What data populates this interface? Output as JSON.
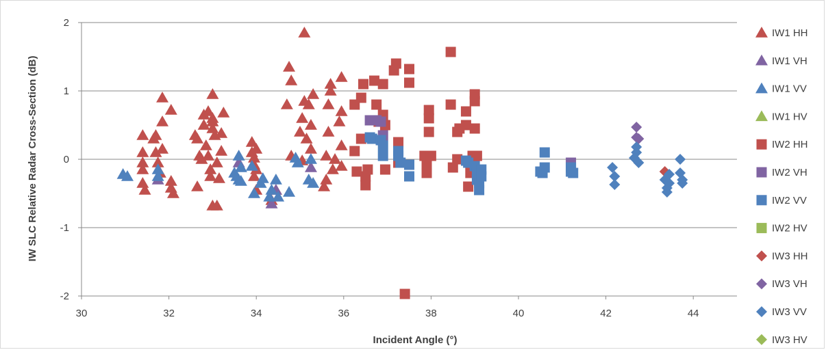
{
  "chart_data": {
    "type": "scatter",
    "title": "",
    "xlabel": "Incident Angle (°)",
    "ylabel": "IW SLC Relative Radar Cross-Section (dB)",
    "xlim": [
      30,
      45
    ],
    "ylim": [
      -2,
      2
    ],
    "xticks": [
      30,
      32,
      34,
      36,
      38,
      40,
      42,
      44
    ],
    "yticks": [
      -2,
      -1,
      0,
      1,
      2
    ],
    "grid": true,
    "legend_position": "right",
    "series": [
      {
        "name": "IW1 HH",
        "marker": "triangle",
        "color": "#c0504d",
        "points": [
          [
            31.4,
            0.35
          ],
          [
            31.4,
            0.1
          ],
          [
            31.4,
            -0.05
          ],
          [
            31.4,
            -0.15
          ],
          [
            31.4,
            -0.35
          ],
          [
            31.45,
            -0.45
          ],
          [
            31.65,
            0.3
          ],
          [
            31.7,
            0.35
          ],
          [
            31.7,
            0.1
          ],
          [
            31.75,
            -0.05
          ],
          [
            31.8,
            -0.2
          ],
          [
            31.85,
            0.15
          ],
          [
            31.85,
            0.55
          ],
          [
            31.85,
            0.9
          ],
          [
            32.05,
            0.72
          ],
          [
            32.05,
            -0.32
          ],
          [
            32.05,
            -0.42
          ],
          [
            32.1,
            -0.5
          ],
          [
            32.6,
            0.35
          ],
          [
            32.65,
            0.3
          ],
          [
            32.65,
            -0.4
          ],
          [
            32.7,
            0.05
          ],
          [
            32.75,
            0.0
          ],
          [
            32.8,
            0.5
          ],
          [
            32.8,
            0.65
          ],
          [
            32.85,
            0.2
          ],
          [
            32.9,
            0.05
          ],
          [
            32.9,
            0.7
          ],
          [
            32.95,
            -0.15
          ],
          [
            32.95,
            -0.25
          ],
          [
            33.0,
            0.45
          ],
          [
            33.0,
            0.55
          ],
          [
            33.0,
            0.6
          ],
          [
            33.0,
            0.95
          ],
          [
            33.05,
            0.35
          ],
          [
            33.0,
            -0.68
          ],
          [
            33.1,
            -0.68
          ],
          [
            33.1,
            -0.05
          ],
          [
            33.15,
            -0.28
          ],
          [
            33.2,
            0.12
          ],
          [
            33.2,
            0.38
          ],
          [
            33.25,
            0.68
          ],
          [
            33.9,
            0.25
          ],
          [
            33.9,
            0.1
          ],
          [
            33.95,
            0.02
          ],
          [
            33.95,
            -0.08
          ],
          [
            34.0,
            0.15
          ],
          [
            34.0,
            -0.15
          ],
          [
            33.95,
            -0.25
          ],
          [
            34.0,
            -0.45
          ],
          [
            34.35,
            -0.6
          ],
          [
            34.45,
            -0.45
          ],
          [
            34.7,
            0.8
          ],
          [
            34.75,
            1.35
          ],
          [
            34.8,
            1.15
          ],
          [
            34.8,
            0.05
          ],
          [
            35.0,
            0.4
          ],
          [
            35.05,
            0.6
          ],
          [
            35.05,
            -0.02
          ],
          [
            35.1,
            0.85
          ],
          [
            35.1,
            1.85
          ],
          [
            35.15,
            0.3
          ],
          [
            35.2,
            0.8
          ],
          [
            35.25,
            0.15
          ],
          [
            35.25,
            0.5
          ],
          [
            35.3,
            0.95
          ],
          [
            35.55,
            -0.4
          ],
          [
            35.6,
            0.05
          ],
          [
            35.6,
            -0.3
          ],
          [
            35.65,
            0.8
          ],
          [
            35.65,
            0.4
          ],
          [
            35.7,
            1.0
          ],
          [
            35.7,
            1.1
          ],
          [
            35.75,
            -0.15
          ],
          [
            35.8,
            0.0
          ],
          [
            35.9,
            0.55
          ],
          [
            35.95,
            0.7
          ],
          [
            35.95,
            1.2
          ],
          [
            35.95,
            0.2
          ],
          [
            35.95,
            -0.1
          ]
        ]
      },
      {
        "name": "IW1 VH",
        "marker": "triangle",
        "color": "#8064a2",
        "points": [
          [
            31.75,
            -0.3
          ],
          [
            33.6,
            -0.05
          ],
          [
            34.35,
            -0.65
          ],
          [
            34.45,
            -0.45
          ],
          [
            35.25,
            -0.12
          ]
        ]
      },
      {
        "name": "IW1 VV",
        "marker": "triangle",
        "color": "#4f81bd",
        "points": [
          [
            30.95,
            -0.22
          ],
          [
            31.05,
            -0.25
          ],
          [
            31.75,
            -0.15
          ],
          [
            31.75,
            -0.25
          ],
          [
            33.5,
            -0.2
          ],
          [
            33.55,
            -0.25
          ],
          [
            33.6,
            -0.3
          ],
          [
            33.6,
            0.05
          ],
          [
            33.65,
            -0.12
          ],
          [
            33.65,
            -0.32
          ],
          [
            33.9,
            -0.1
          ],
          [
            33.95,
            -0.5
          ],
          [
            34.1,
            -0.35
          ],
          [
            34.15,
            -0.28
          ],
          [
            34.3,
            -0.55
          ],
          [
            34.35,
            -0.45
          ],
          [
            34.45,
            -0.3
          ],
          [
            34.5,
            -0.55
          ],
          [
            34.75,
            -0.48
          ],
          [
            34.9,
            0.02
          ],
          [
            34.95,
            -0.05
          ],
          [
            35.2,
            -0.3
          ],
          [
            35.25,
            0.0
          ],
          [
            35.3,
            -0.35
          ]
        ]
      },
      {
        "name": "IW1 HV",
        "marker": "triangle",
        "color": "#9bbb59",
        "points": []
      },
      {
        "name": "IW2 HH",
        "marker": "square",
        "color": "#c0504d",
        "points": [
          [
            36.25,
            0.8
          ],
          [
            36.25,
            0.12
          ],
          [
            36.3,
            -0.18
          ],
          [
            36.4,
            0.9
          ],
          [
            36.4,
            0.3
          ],
          [
            36.45,
            1.1
          ],
          [
            36.5,
            -0.25
          ],
          [
            36.5,
            -0.38
          ],
          [
            36.55,
            -0.15
          ],
          [
            36.7,
            1.15
          ],
          [
            36.75,
            0.8
          ],
          [
            36.8,
            0.55
          ],
          [
            36.9,
            1.1
          ],
          [
            36.9,
            0.65
          ],
          [
            36.95,
            0.5
          ],
          [
            36.95,
            -0.15
          ],
          [
            37.15,
            1.3
          ],
          [
            37.2,
            1.4
          ],
          [
            37.25,
            0.25
          ],
          [
            37.25,
            -0.05
          ],
          [
            37.4,
            -1.97
          ],
          [
            37.5,
            1.32
          ],
          [
            37.5,
            1.12
          ],
          [
            37.85,
            0.05
          ],
          [
            37.9,
            -0.2
          ],
          [
            37.9,
            -0.08
          ],
          [
            37.95,
            0.72
          ],
          [
            37.95,
            0.6
          ],
          [
            37.95,
            0.4
          ],
          [
            38.0,
            0.05
          ],
          [
            38.45,
            1.57
          ],
          [
            38.45,
            0.8
          ],
          [
            38.5,
            -0.12
          ],
          [
            38.6,
            0.4
          ],
          [
            38.6,
            0.0
          ],
          [
            38.65,
            0.45
          ],
          [
            38.8,
            0.7
          ],
          [
            38.8,
            0.5
          ],
          [
            38.85,
            -0.4
          ],
          [
            38.9,
            -0.2
          ],
          [
            38.95,
            0.05
          ],
          [
            39.0,
            0.85
          ],
          [
            39.0,
            0.95
          ],
          [
            39.0,
            0.45
          ],
          [
            39.05,
            0.05
          ]
        ]
      },
      {
        "name": "IW2 VH",
        "marker": "square",
        "color": "#8064a2",
        "points": [
          [
            36.6,
            0.57
          ],
          [
            36.75,
            0.57
          ],
          [
            36.85,
            0.55
          ],
          [
            36.9,
            0.35
          ],
          [
            41.2,
            -0.05
          ]
        ]
      },
      {
        "name": "IW2 VV",
        "marker": "square",
        "color": "#4f81bd",
        "points": [
          [
            36.6,
            0.32
          ],
          [
            36.65,
            0.3
          ],
          [
            36.85,
            0.28
          ],
          [
            36.9,
            0.2
          ],
          [
            36.9,
            0.05
          ],
          [
            37.25,
            0.12
          ],
          [
            37.25,
            0.05
          ],
          [
            37.3,
            -0.05
          ],
          [
            37.5,
            -0.08
          ],
          [
            37.5,
            -0.25
          ],
          [
            38.8,
            -0.02
          ],
          [
            38.85,
            -0.05
          ],
          [
            39.0,
            -0.1
          ],
          [
            39.05,
            -0.2
          ],
          [
            39.05,
            -0.3
          ],
          [
            39.1,
            -0.35
          ],
          [
            39.1,
            -0.45
          ],
          [
            39.15,
            -0.15
          ],
          [
            39.15,
            -0.25
          ],
          [
            40.5,
            -0.18
          ],
          [
            40.55,
            -0.2
          ],
          [
            40.6,
            0.1
          ],
          [
            40.6,
            -0.12
          ],
          [
            41.2,
            -0.12
          ],
          [
            41.2,
            -0.18
          ],
          [
            41.25,
            -0.2
          ]
        ]
      },
      {
        "name": "IW2 HV",
        "marker": "square",
        "color": "#9bbb59",
        "points": []
      },
      {
        "name": "IW3 HH",
        "marker": "diamond",
        "color": "#c0504d",
        "points": [
          [
            43.35,
            -0.18
          ]
        ]
      },
      {
        "name": "IW3 VH",
        "marker": "diamond",
        "color": "#8064a2",
        "points": [
          [
            42.7,
            0.47
          ],
          [
            42.7,
            0.32
          ],
          [
            42.75,
            0.3
          ]
        ]
      },
      {
        "name": "IW3 VV",
        "marker": "diamond",
        "color": "#4f81bd",
        "points": [
          [
            42.15,
            -0.12
          ],
          [
            42.2,
            -0.25
          ],
          [
            42.2,
            -0.37
          ],
          [
            42.65,
            0.02
          ],
          [
            42.7,
            0.1
          ],
          [
            42.7,
            0.18
          ],
          [
            42.75,
            -0.05
          ],
          [
            43.35,
            -0.3
          ],
          [
            43.4,
            -0.42
          ],
          [
            43.4,
            -0.48
          ],
          [
            43.45,
            -0.22
          ],
          [
            43.45,
            -0.35
          ],
          [
            43.7,
            0.0
          ],
          [
            43.7,
            -0.2
          ],
          [
            43.75,
            -0.3
          ],
          [
            43.75,
            -0.35
          ]
        ]
      },
      {
        "name": "IW3 HV",
        "marker": "diamond",
        "color": "#9bbb59",
        "points": []
      }
    ]
  }
}
